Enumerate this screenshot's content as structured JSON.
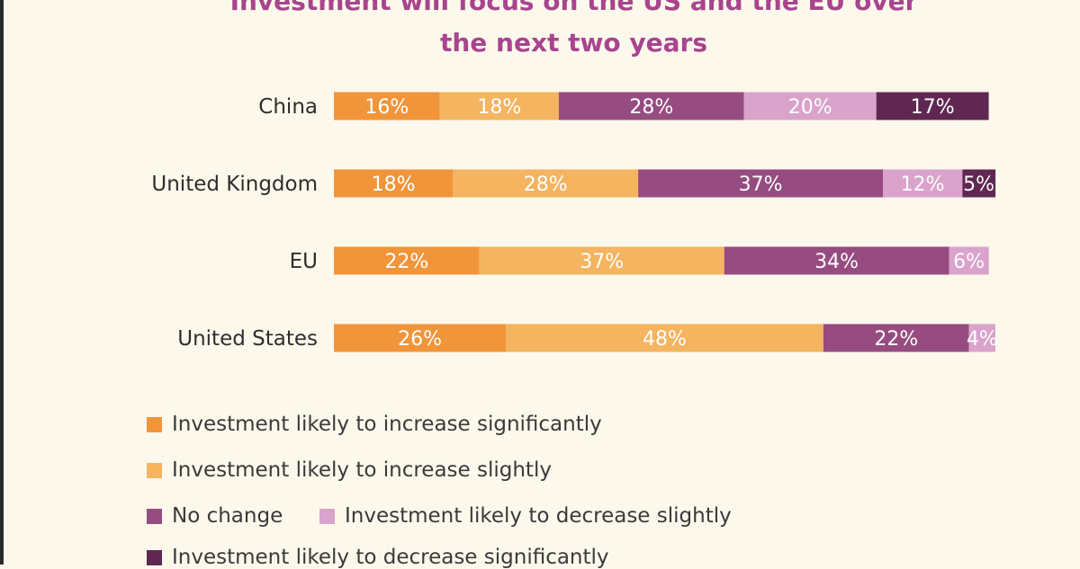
{
  "title_lines": [
    "Investment will focus on the US and the EU over",
    "the next two years"
  ],
  "chart_data": {
    "type": "bar",
    "orientation": "horizontal",
    "stacked": true,
    "title": "Investment will focus on the US and the EU over the next two years",
    "categories": [
      "China",
      "United Kingdom",
      "EU",
      "United States"
    ],
    "series": [
      {
        "name": "Investment likely to increase significantly",
        "color": "#f0953a",
        "values": [
          16,
          18,
          22,
          26
        ]
      },
      {
        "name": "Investment likely to increase slightly",
        "color": "#f4b460",
        "values": [
          18,
          28,
          37,
          48
        ]
      },
      {
        "name": "No change",
        "color": "#964c80",
        "values": [
          28,
          37,
          34,
          22
        ]
      },
      {
        "name": "Investment likely to decrease slightly",
        "color": "#d9a3cb",
        "values": [
          20,
          12,
          6,
          4
        ]
      },
      {
        "name": "Investment likely to decrease significantly",
        "color": "#5f2752",
        "values": [
          17,
          5,
          0,
          0
        ]
      }
    ],
    "value_format": "percent",
    "grid": false,
    "legend_position": "bottom"
  }
}
